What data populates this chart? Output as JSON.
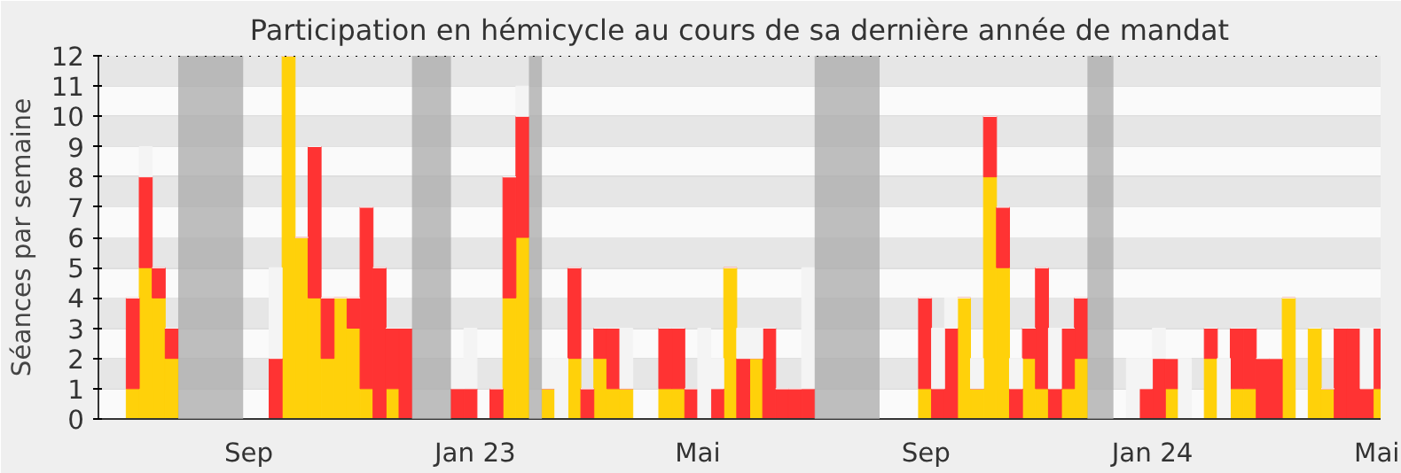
{
  "chart_data": {
    "type": "bar",
    "stacked": true,
    "title": "Participation en hémicycle au cours de sa dernière année de mandat",
    "ylabel": "Séances par semaine",
    "x": [
      "2022-06-27",
      "2022-07-04",
      "2022-07-11",
      "2022-07-18",
      "2022-07-25",
      "2022-08-01",
      "2022-08-08",
      "2022-08-15",
      "2022-08-22",
      "2022-08-29",
      "2022-09-05",
      "2022-09-12",
      "2022-09-19",
      "2022-09-26",
      "2022-10-03",
      "2022-10-10",
      "2022-10-17",
      "2022-10-24",
      "2022-10-31",
      "2022-11-07",
      "2022-11-14",
      "2022-11-21",
      "2022-11-28",
      "2022-12-05",
      "2022-12-12",
      "2022-12-19",
      "2022-12-26",
      "2023-01-02",
      "2023-01-09",
      "2023-01-16",
      "2023-01-23",
      "2023-01-30",
      "2023-02-06",
      "2023-02-13",
      "2023-02-20",
      "2023-02-27",
      "2023-03-06",
      "2023-03-13",
      "2023-03-20",
      "2023-03-27",
      "2023-04-03",
      "2023-04-10",
      "2023-04-17",
      "2023-04-24",
      "2023-05-01",
      "2023-05-08",
      "2023-05-15",
      "2023-05-22",
      "2023-05-29",
      "2023-06-05",
      "2023-06-12",
      "2023-06-19",
      "2023-06-26",
      "2023-07-03",
      "2023-07-10",
      "2023-07-17",
      "2023-07-24",
      "2023-07-31",
      "2023-08-07",
      "2023-08-14",
      "2023-08-21",
      "2023-08-28",
      "2023-09-04",
      "2023-09-11",
      "2023-09-18",
      "2023-09-25",
      "2023-10-02",
      "2023-10-09",
      "2023-10-16",
      "2023-10-23",
      "2023-10-30",
      "2023-11-06",
      "2023-11-13",
      "2023-11-20",
      "2023-11-27",
      "2023-12-04",
      "2023-12-11",
      "2023-12-18",
      "2023-12-25",
      "2024-01-01",
      "2024-01-08",
      "2024-01-15",
      "2024-01-22",
      "2024-01-29",
      "2024-02-05",
      "2024-02-12",
      "2024-02-19",
      "2024-02-26",
      "2024-03-04",
      "2024-03-11",
      "2024-03-18",
      "2024-03-25",
      "2024-04-01",
      "2024-04-08",
      "2024-04-15",
      "2024-04-22",
      "2024-04-29"
    ],
    "series": [
      {
        "color": "#ffd10a",
        "values": [
          1,
          5,
          4,
          2,
          0,
          0,
          0,
          0,
          0,
          0,
          0,
          0,
          12,
          6,
          4,
          2,
          4,
          3,
          1,
          0,
          1,
          0,
          0,
          0,
          0,
          0,
          0,
          0,
          0,
          4,
          6,
          0,
          1,
          0,
          2,
          0,
          2,
          1,
          1,
          0,
          0,
          1,
          1,
          0,
          0,
          0,
          5,
          0,
          2,
          0,
          0,
          0,
          0,
          0,
          0,
          0,
          0,
          0,
          0,
          0,
          0,
          1,
          0,
          0,
          4,
          1,
          8,
          5,
          0,
          2,
          1,
          0,
          1,
          2,
          0,
          0,
          0,
          0,
          0,
          0,
          1,
          0,
          0,
          2,
          0,
          1,
          1,
          0,
          0,
          4,
          0,
          3,
          1,
          0,
          0,
          0,
          1
        ]
      },
      {
        "color": "#ff3333",
        "values": [
          3,
          3,
          1,
          1,
          0,
          0,
          0,
          0,
          0,
          0,
          0,
          2,
          0,
          0,
          5,
          2,
          0,
          1,
          6,
          5,
          2,
          3,
          0,
          0,
          0,
          1,
          1,
          0,
          1,
          4,
          4,
          0,
          0,
          0,
          3,
          1,
          1,
          2,
          0,
          0,
          0,
          2,
          2,
          1,
          0,
          1,
          0,
          2,
          0,
          3,
          1,
          1,
          1,
          0,
          0,
          0,
          0,
          0,
          0,
          0,
          0,
          3,
          1,
          3,
          0,
          0,
          2,
          2,
          1,
          1,
          4,
          1,
          2,
          2,
          0,
          0,
          0,
          0,
          1,
          2,
          1,
          0,
          0,
          1,
          0,
          2,
          2,
          2,
          2,
          0,
          0,
          0,
          0,
          3,
          3,
          1,
          2
        ]
      },
      {
        "color": "#f4f4f4",
        "values": [
          0,
          1,
          0,
          0,
          0,
          0,
          0,
          0,
          0,
          0,
          0,
          3,
          0,
          0,
          0,
          0,
          0,
          0,
          0,
          0,
          0,
          0,
          0,
          0,
          0,
          1,
          2,
          0,
          0,
          0,
          1,
          0,
          1,
          2,
          0,
          0,
          0,
          0,
          2,
          0,
          0,
          0,
          0,
          0,
          3,
          1,
          0,
          1,
          1,
          0,
          0,
          0,
          4,
          0,
          0,
          0,
          0,
          0,
          0,
          0,
          0,
          0,
          2,
          1,
          0,
          1,
          0,
          0,
          1,
          0,
          0,
          2,
          0,
          0,
          0,
          0,
          0,
          2,
          1,
          1,
          0,
          2,
          0,
          0,
          2,
          0,
          0,
          0,
          0,
          0,
          0,
          0,
          0,
          0,
          0,
          2,
          0
        ]
      }
    ],
    "xlim": [
      "2022-06-12",
      "2024-05-03"
    ],
    "xticks": [
      {
        "value": "2022-09-01",
        "label": "Sep"
      },
      {
        "value": "2023-01-01",
        "label": "Jan 23"
      },
      {
        "value": "2023-05-01",
        "label": "Mai"
      },
      {
        "value": "2023-09-01",
        "label": "Sep"
      },
      {
        "value": "2024-01-01",
        "label": "Jan 24"
      },
      {
        "value": "2024-05-01",
        "label": "Mai"
      }
    ],
    "ylim": [
      0,
      12
    ],
    "yticks": [
      0,
      1,
      2,
      3,
      4,
      5,
      6,
      7,
      8,
      9,
      10,
      11,
      12
    ],
    "grid": "y",
    "bands": [
      {
        "axis": "x",
        "from": "2022-07-25",
        "to": "2022-08-29",
        "color": "#aaaaaa"
      },
      {
        "axis": "x",
        "from": "2022-11-28",
        "to": "2022-12-19",
        "color": "#aaaaaa"
      },
      {
        "axis": "x",
        "from": "2023-01-30",
        "to": "2023-02-06",
        "color": "#aaaaaa"
      },
      {
        "axis": "x",
        "from": "2023-07-03",
        "to": "2023-08-07",
        "color": "#aaaaaa"
      },
      {
        "axis": "x",
        "from": "2023-11-27",
        "to": "2023-12-11",
        "color": "#aaaaaa"
      }
    ],
    "ref_lines": [
      {
        "axis": "y",
        "value": 12,
        "line_style": "dotted",
        "color": "#000000"
      }
    ]
  }
}
